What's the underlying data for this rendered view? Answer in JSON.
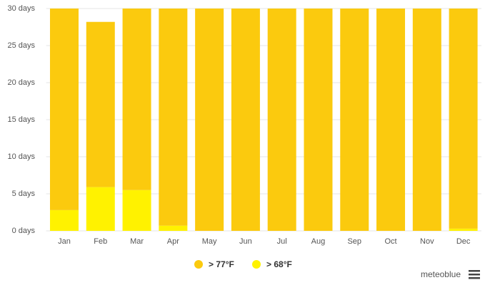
{
  "chart_data": {
    "type": "stacked-bar",
    "categories": [
      "Jan",
      "Feb",
      "Mar",
      "Apr",
      "May",
      "Jun",
      "Jul",
      "Aug",
      "Sep",
      "Oct",
      "Nov",
      "Dec"
    ],
    "series": [
      {
        "name": "> 77°F",
        "color": "#fbca0e",
        "values": [
          27.2,
          22.3,
          24.5,
          29.3,
          30,
          30,
          30,
          30,
          30,
          30,
          30,
          29.7
        ]
      },
      {
        "name": "> 68°F",
        "color": "#fff200",
        "values": [
          2.8,
          5.9,
          5.5,
          0.7,
          0,
          0,
          0,
          0,
          0,
          0,
          0,
          0.3
        ]
      }
    ],
    "ylim": [
      0,
      30
    ],
    "yticks": [
      {
        "value": 0,
        "label": "0 days"
      },
      {
        "value": 5,
        "label": "5 days"
      },
      {
        "value": 10,
        "label": "10 days"
      },
      {
        "value": 15,
        "label": "15 days"
      },
      {
        "value": 20,
        "label": "20 days"
      },
      {
        "value": 25,
        "label": "25 days"
      },
      {
        "value": 30,
        "label": "30 days"
      }
    ],
    "grid": true,
    "credit": "meteoblue"
  }
}
